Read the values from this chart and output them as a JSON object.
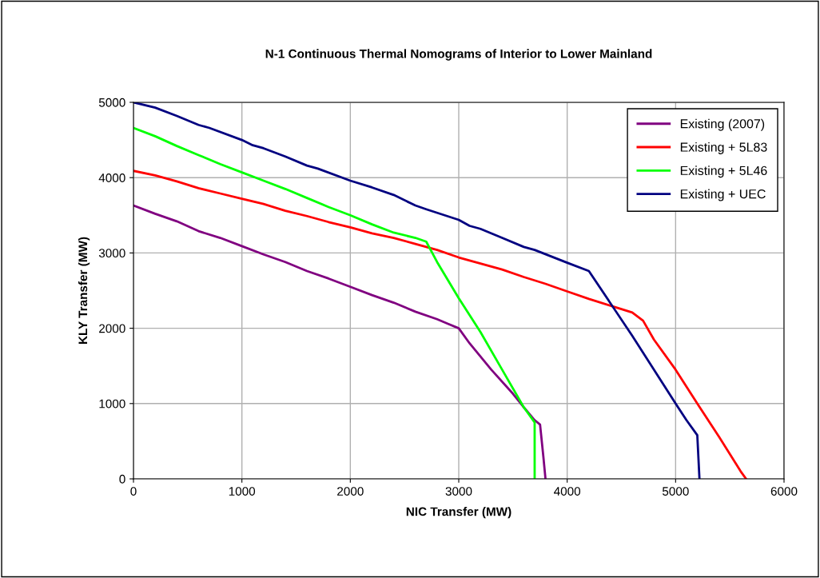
{
  "chart_data": {
    "type": "line",
    "title": "N-1 Continuous Thermal Nomograms of Interior to Lower Mainland",
    "xlabel": "NIC Transfer (MW)",
    "ylabel": "KLY Transfer (MW)",
    "xlim": [
      0,
      6000
    ],
    "xticks": [
      0,
      1000,
      2000,
      3000,
      4000,
      5000,
      6000
    ],
    "ylim": [
      0,
      5000
    ],
    "yticks": [
      0,
      1000,
      2000,
      3000,
      4000,
      5000
    ],
    "grid": true,
    "legend": "top right",
    "marker": "none",
    "line_style": "solid",
    "series": [
      {
        "name": "Existing (2007)",
        "color": "#800080",
        "x": [
          0,
          200,
          400,
          600,
          800,
          1000,
          1200,
          1400,
          1600,
          1800,
          2000,
          2200,
          2400,
          2600,
          2800,
          2900,
          3000,
          3100,
          3300,
          3500,
          3600,
          3700,
          3750,
          3780,
          3800
        ],
        "values": [
          3630,
          3520,
          3420,
          3290,
          3200,
          3090,
          2980,
          2880,
          2760,
          2660,
          2550,
          2440,
          2340,
          2220,
          2120,
          2060,
          2000,
          1800,
          1450,
          1130,
          950,
          780,
          720,
          300,
          0
        ]
      },
      {
        "name": "Existing + 5L83",
        "color": "#ff0000",
        "x": [
          0,
          200,
          400,
          600,
          800,
          1000,
          1200,
          1400,
          1600,
          1800,
          2000,
          2200,
          2400,
          2600,
          2800,
          3000,
          3200,
          3400,
          3600,
          3800,
          4000,
          4200,
          4400,
          4600,
          4700,
          4800,
          5000,
          5200,
          5400,
          5600,
          5650
        ],
        "values": [
          4090,
          4030,
          3950,
          3860,
          3790,
          3720,
          3650,
          3560,
          3490,
          3410,
          3340,
          3260,
          3200,
          3120,
          3040,
          2940,
          2860,
          2780,
          2680,
          2590,
          2490,
          2390,
          2300,
          2210,
          2100,
          1850,
          1450,
          1000,
          560,
          100,
          0
        ]
      },
      {
        "name": "Existing + 5L46",
        "color": "#00ff00",
        "x": [
          0,
          200,
          400,
          600,
          800,
          1000,
          1200,
          1400,
          1600,
          1800,
          2000,
          2200,
          2400,
          2600,
          2700,
          2800,
          3000,
          3200,
          3400,
          3600,
          3700,
          3700
        ],
        "values": [
          4660,
          4550,
          4420,
          4300,
          4180,
          4070,
          3960,
          3850,
          3730,
          3610,
          3500,
          3380,
          3270,
          3200,
          3150,
          2880,
          2400,
          1950,
          1450,
          950,
          750,
          0
        ]
      },
      {
        "name": "Existing + UEC",
        "color": "#000080",
        "x": [
          0,
          200,
          400,
          600,
          700,
          1000,
          1100,
          1200,
          1400,
          1600,
          1700,
          2000,
          2200,
          2400,
          2600,
          2700,
          3000,
          3100,
          3200,
          3400,
          3600,
          3700,
          4000,
          4200,
          4600,
          5000,
          5100,
          5200,
          5220
        ],
        "values": [
          5000,
          4930,
          4820,
          4700,
          4660,
          4500,
          4430,
          4390,
          4280,
          4160,
          4120,
          3960,
          3870,
          3770,
          3630,
          3580,
          3440,
          3360,
          3320,
          3200,
          3080,
          3040,
          2870,
          2760,
          1900,
          1000,
          780,
          580,
          0
        ]
      }
    ]
  }
}
